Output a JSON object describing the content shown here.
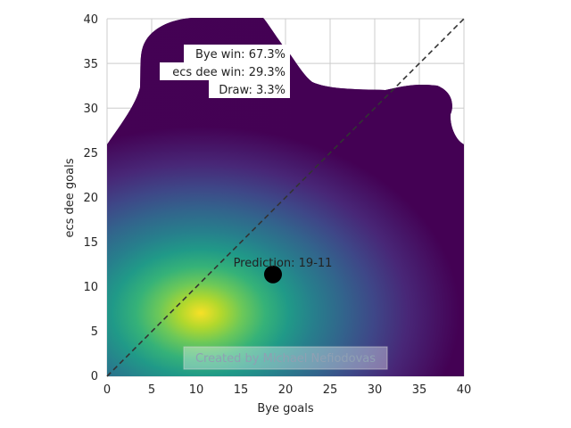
{
  "chart_data": {
    "type": "heatmap",
    "title": "",
    "xlabel": "Bye goals",
    "ylabel": "ecs dee goals",
    "xlim": [
      0,
      40
    ],
    "ylim": [
      0,
      40
    ],
    "x_ticks": [
      "0",
      "5",
      "10",
      "15",
      "20",
      "25",
      "30",
      "35",
      "40"
    ],
    "y_ticks": [
      "0",
      "5",
      "10",
      "15",
      "20",
      "25",
      "30",
      "35",
      "40"
    ],
    "grid": true,
    "colormap": "viridis",
    "density_peak": {
      "x": 10.5,
      "y": 7
    },
    "density_spread": {
      "x": 6.5,
      "y": 5.5
    },
    "diagonal": {
      "from": [
        0,
        0
      ],
      "to": [
        40,
        40
      ],
      "style": "dashed",
      "color": "#333333"
    },
    "prediction_point": {
      "x": 18.6,
      "y": 11.4,
      "color": "#000000"
    },
    "prediction_label": "Prediction: 19-11",
    "probabilities": [
      {
        "label": "Bye win: 67.3%"
      },
      {
        "label": "ecs dee win: 29.3%"
      },
      {
        "label": "Draw: 3.3%"
      }
    ],
    "credit": "Created by Michael Nefiodovas"
  }
}
